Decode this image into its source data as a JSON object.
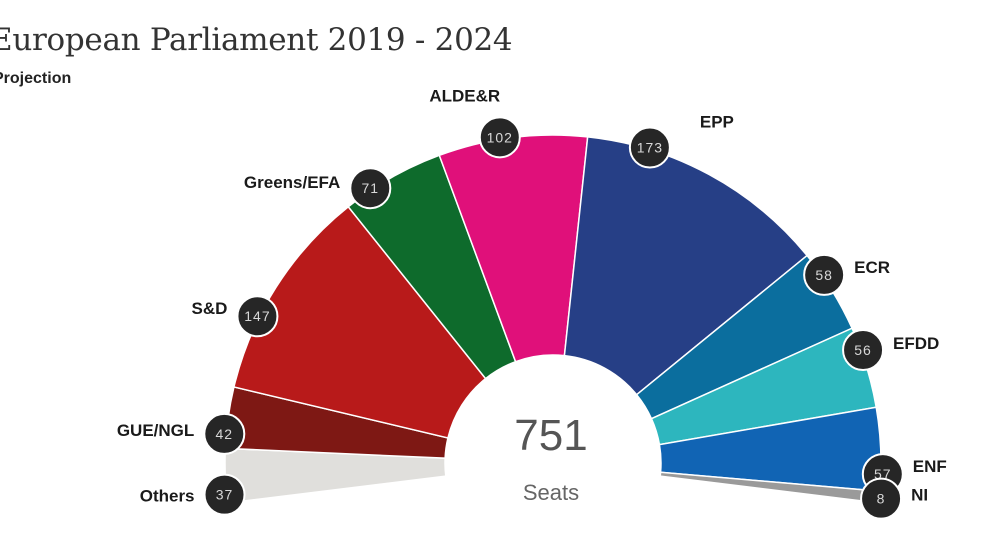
{
  "header": {
    "title": "European Parliament 2019 - 2024",
    "subtitle": "Projection"
  },
  "chart_data": {
    "type": "pie",
    "variant": "parliament-semicircle",
    "title": "European Parliament 2019 - 2024",
    "subtitle": "Projection",
    "total": "751",
    "total_label": "Seats",
    "series": [
      {
        "name": "Others",
        "value": 37,
        "color": "#e0dfdc"
      },
      {
        "name": "GUE/NGL",
        "value": 42,
        "color": "#7e1814"
      },
      {
        "name": "S&D",
        "value": 147,
        "color": "#b81a1a"
      },
      {
        "name": "Greens/EFA",
        "value": 71,
        "color": "#0e6b2c"
      },
      {
        "name": "ALDE&R",
        "value": 102,
        "color": "#e0107a"
      },
      {
        "name": "EPP",
        "value": 173,
        "color": "#263f86"
      },
      {
        "name": "ECR",
        "value": 58,
        "color": "#0b6e9e"
      },
      {
        "name": "EFDD",
        "value": 56,
        "color": "#2db6be"
      },
      {
        "name": "ENF",
        "value": 57,
        "color": "#1164b4"
      },
      {
        "name": "NI",
        "value": 8,
        "color": "#9a9a9a"
      }
    ]
  }
}
